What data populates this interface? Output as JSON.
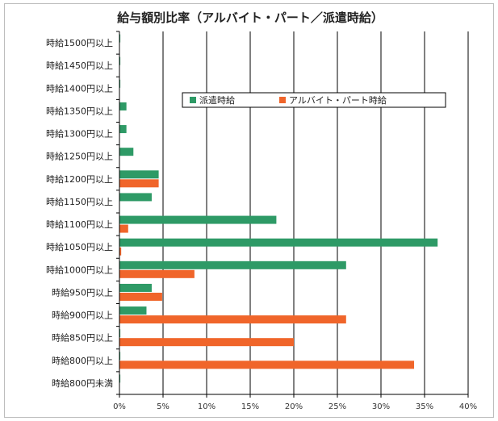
{
  "chart_data": {
    "type": "bar",
    "orientation": "horizontal",
    "title": "給与額別比率（アルバイト・パート／派遣時給）",
    "categories": [
      "時給1500円以上",
      "時給1450円以上",
      "時給1400円以上",
      "時給1350円以上",
      "時給1300円以上",
      "時給1250円以上",
      "時給1200円以上",
      "時給1150円以上",
      "時給1100円以上",
      "時給1050円以上",
      "時給1000円以上",
      "時給950円以上",
      "時給900円以上",
      "時給850円以上",
      "時給800円以上",
      "時給800円未満"
    ],
    "series": [
      {
        "name": "派遣時給",
        "color": "#2e9a66",
        "values": [
          0.1,
          0.1,
          0.1,
          0.8,
          0.8,
          1.6,
          4.5,
          3.7,
          18.0,
          36.5,
          26.0,
          3.7,
          3.1,
          0.1,
          0.1,
          0.1
        ]
      },
      {
        "name": "アルバイト・パート時給",
        "color": "#f0652a",
        "values": [
          0.0,
          0.0,
          0.0,
          0.0,
          0.0,
          0.0,
          4.5,
          0.0,
          1.0,
          0.2,
          8.6,
          4.9,
          26.0,
          20.0,
          33.8,
          0.0
        ]
      }
    ],
    "xlim": [
      0,
      40
    ],
    "xticks": [
      "0%",
      "5%",
      "10%",
      "15%",
      "20%",
      "25%",
      "30%",
      "35%",
      "40%"
    ],
    "xtick_values": [
      0,
      5,
      10,
      15,
      20,
      25,
      30,
      35,
      40
    ],
    "grid": true,
    "legend_position": "top-right"
  }
}
